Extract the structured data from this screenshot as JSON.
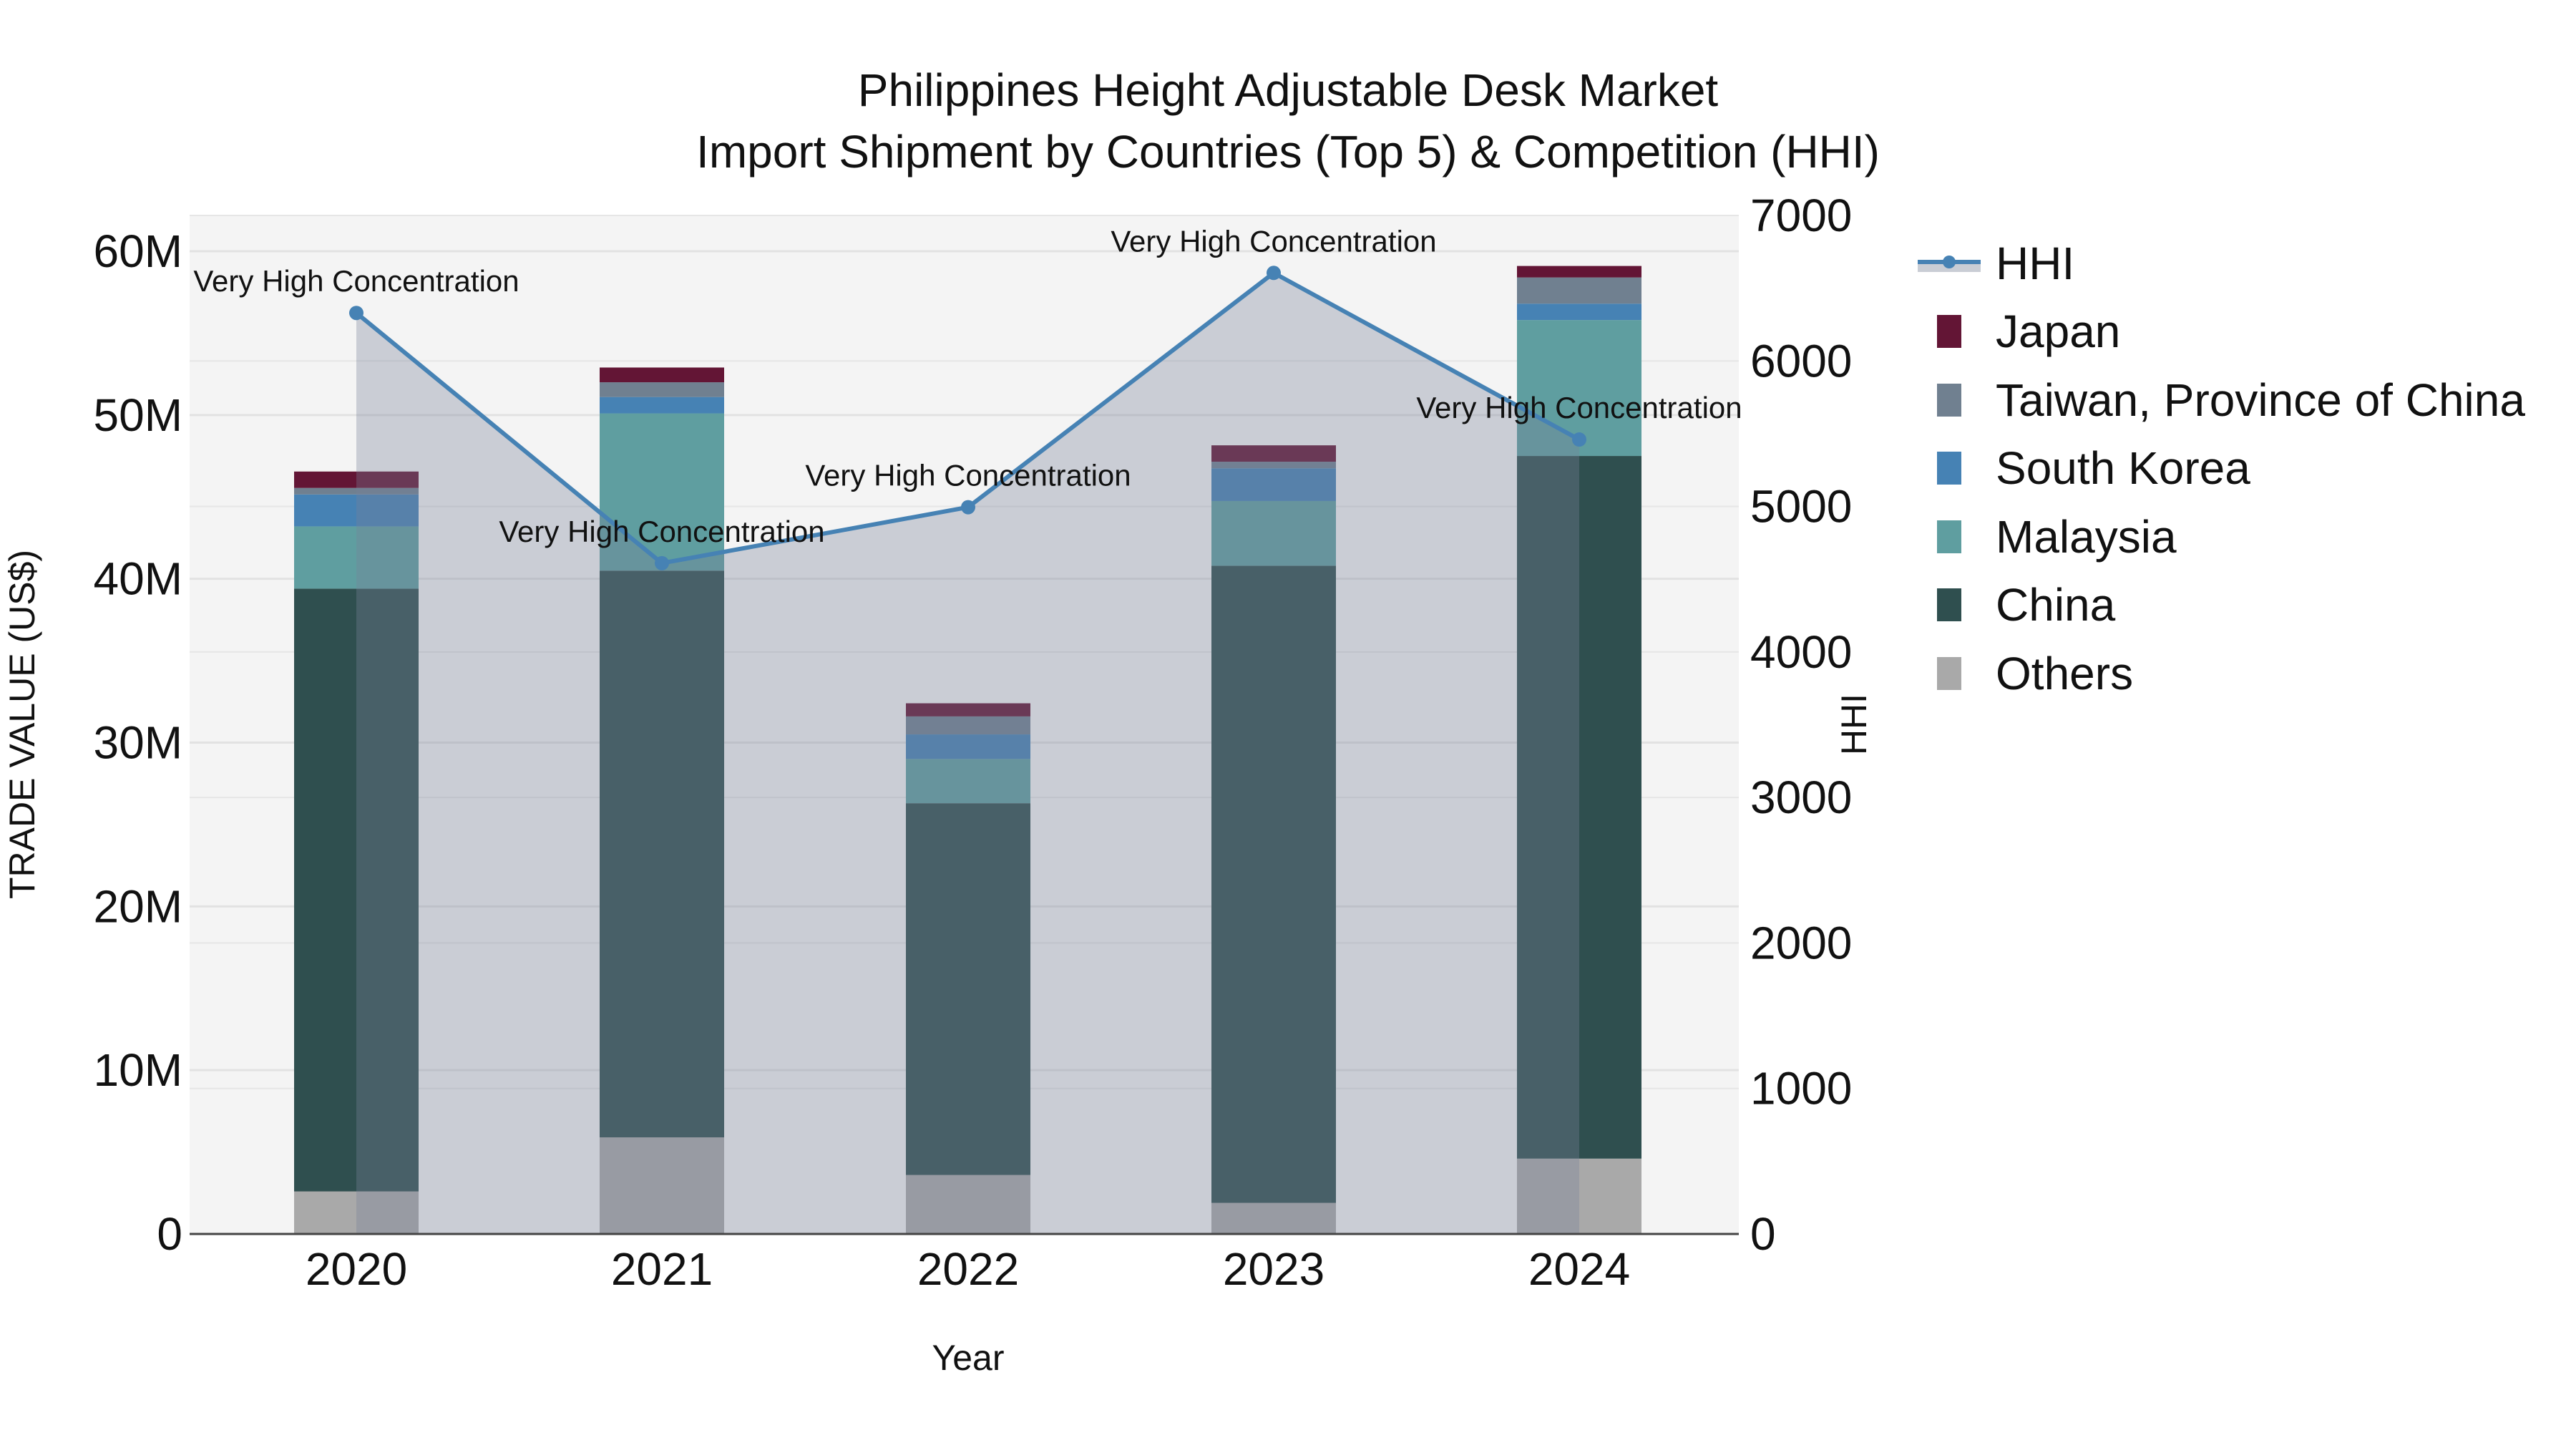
{
  "title": {
    "line1": "Philippines Height Adjustable Desk Market",
    "line2": "Import Shipment by Countries (Top 5) & Competition (HHI)"
  },
  "axes": {
    "x_label": "Year",
    "y_left_label": "TRADE VALUE (US$)",
    "y_right_label": "HHI",
    "y_left_ticks": [
      "0",
      "10M",
      "20M",
      "30M",
      "40M",
      "50M",
      "60M"
    ],
    "y_right_ticks": [
      "0",
      "1000",
      "2000",
      "3000",
      "4000",
      "5000",
      "6000",
      "7000"
    ]
  },
  "legend": [
    {
      "name": "HHI",
      "type": "line",
      "color": "#4682b4"
    },
    {
      "name": "Japan",
      "type": "box",
      "color": "#631535"
    },
    {
      "name": "Taiwan, Province of China",
      "type": "box",
      "color": "#708090"
    },
    {
      "name": "South Korea",
      "type": "box",
      "color": "#4682b4"
    },
    {
      "name": "Malaysia",
      "type": "box",
      "color": "#5f9ea0"
    },
    {
      "name": "China",
      "type": "box",
      "color": "#2f4f4f"
    },
    {
      "name": "Others",
      "type": "box",
      "color": "#a9a9a9"
    }
  ],
  "colors": {
    "plot_bg": "#f4f4f4",
    "grid": "#e2e2e2",
    "hhi_line": "#4682b4",
    "hhi_fill": "rgba(119,129,153,0.34)"
  },
  "chart_data": {
    "type": "bar",
    "stacked": true,
    "title": "Philippines Height Adjustable Desk Market — Import Shipment by Countries (Top 5) & Competition (HHI)",
    "xlabel": "Year",
    "ylabel": "TRADE VALUE (US$)",
    "y2label": "HHI",
    "categories": [
      "2020",
      "2021",
      "2022",
      "2023",
      "2024"
    ],
    "ylim": [
      0,
      62000000
    ],
    "y2lim": [
      0,
      7000
    ],
    "grid": true,
    "legend_position": "right",
    "series": [
      {
        "name": "Others",
        "color": "#a9a9a9",
        "values": [
          2600000,
          5900000,
          3600000,
          1900000,
          4600000
        ]
      },
      {
        "name": "China",
        "color": "#2f4f4f",
        "values": [
          36800000,
          34600000,
          22700000,
          38900000,
          42900000
        ]
      },
      {
        "name": "Malaysia",
        "color": "#5f9ea0",
        "values": [
          3800000,
          9600000,
          2700000,
          3950000,
          8300000
        ]
      },
      {
        "name": "South Korea",
        "color": "#4682b4",
        "values": [
          1950000,
          1000000,
          1500000,
          2000000,
          1000000
        ]
      },
      {
        "name": "Taiwan, Province of China",
        "color": "#708090",
        "values": [
          400000,
          900000,
          1100000,
          400000,
          1600000
        ]
      },
      {
        "name": "Japan",
        "color": "#631535",
        "values": [
          1000000,
          900000,
          800000,
          1000000,
          700000
        ]
      }
    ],
    "line_series": {
      "name": "HHI",
      "axis": "right",
      "color": "#4682b4",
      "fill": "tozeroy",
      "values": [
        6330,
        4610,
        4995,
        6605,
        5460
      ],
      "annotations": [
        "Very High Concentration",
        "Very High Concentration",
        "Very High Concentration",
        "Very High Concentration",
        "Very High Concentration"
      ]
    }
  }
}
